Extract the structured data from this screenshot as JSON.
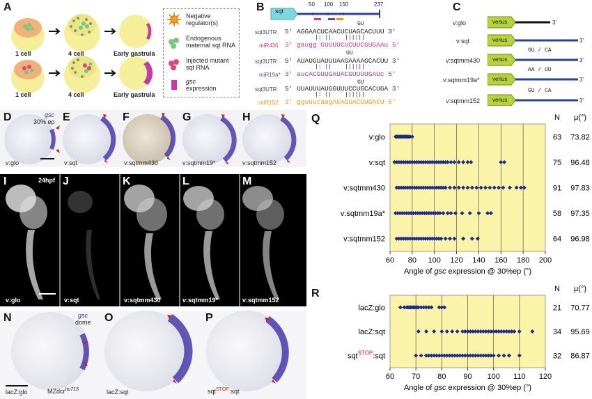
{
  "panels": {
    "A": "A",
    "B": "B",
    "C": "C",
    "D": "D",
    "E": "E",
    "F": "F",
    "G": "G",
    "H": "H",
    "I": "I",
    "J": "J",
    "K": "K",
    "L": "L",
    "M": "M",
    "N": "N",
    "O": "O",
    "P": "P",
    "Q": "Q",
    "R": "R"
  },
  "panelA": {
    "stage1": "1 cell",
    "stage2": "4 cell",
    "stage3": "Early gastrula",
    "legend": {
      "neg_reg": "Negative regulator(s)",
      "endog": "Endogenous maternal sqt RNA",
      "inj": "Injected mutant sqt RNA",
      "gsc_word": "gsc",
      "gsc_rest": "expression"
    }
  },
  "panelB": {
    "gene_box": "sqt",
    "ticks": [
      "50",
      "100",
      "150",
      "237"
    ],
    "rows": [
      {
        "label": "sqt3UTR",
        "seq": "5' AGGAACUCAACUCUAGCACUUU 3'",
        "bulge": "GU",
        "pairs": "|: ||    ||||||",
        "mir_label": "miR430",
        "mir_seq": "3' gaugg GUUUUCUCUUCGUGAAu 5'",
        "color": "#d63384"
      },
      {
        "label": "sqt3UTR",
        "seq": "5' AUAUGUAUUUAAGAAAAGCACUU 3'",
        "bulge": "UU",
        "pairs": "|: ||    ||||||",
        "mir_label": "miR19a*",
        "mir_seq": "3' aucACGUUGAUACGUUUUGAUc 5'",
        "color": "#7b3fa8"
      },
      {
        "label": "sqt3UTR",
        "seq": "5' UUAUUUAUGGUUUCCUGCACUGA 3'",
        "bulge": "GU",
        "pairs": "|: ||    ||||||",
        "mir_label": "miR152",
        "mir_seq": "3' gguuucaagACAGUACGUGACU 5'",
        "color": "#e69a1a"
      }
    ]
  },
  "panelC": {
    "rows": [
      {
        "name": "v:glo",
        "venus": "venus",
        "mut": "",
        "three": "3'"
      },
      {
        "name": "v:sqt",
        "venus": "venus",
        "mut": "",
        "three": "3'"
      },
      {
        "name": "v:sqtmm430",
        "venus": "venus",
        "mut": "GU / CA",
        "three": "3'"
      },
      {
        "name": "v:sqtmm19a*",
        "venus": "venus",
        "mut": "AA / UU",
        "three": "3'"
      },
      {
        "name": "v:sqtmm152",
        "venus": "venus",
        "mut": "GU / CA",
        "three": "3'"
      }
    ]
  },
  "photos_top": {
    "D_gsc": "gsc",
    "D_ep": "30% ep",
    "D": "v:glo",
    "E": "v:sqt",
    "F": "v:sqtmm430",
    "G": "v:sqtmm19*",
    "H": "v:sqtmm152"
  },
  "photos_mid": {
    "I_time": "24hpf",
    "I": "v:glo",
    "J": "v:sqt",
    "K": "v:sqtmm430",
    "L": "v:sqtmm19*",
    "M": "v:sqtmm152"
  },
  "photos_bot": {
    "N_gsc": "gsc",
    "N_dome": "dome",
    "N": "lacZ:glo",
    "N_geno": "MZdcr",
    "N_geno_sup": "hu715",
    "O": "lacZ:sqt",
    "P_pre": "sqt",
    "P_sup": "STOP",
    "P_post": ":sqt"
  },
  "colors": {
    "chart_bg": "#fbf3a8",
    "dot": "#1c2a8a",
    "purple": "#3b2a8f"
  },
  "chart_data": [
    {
      "type": "scatter",
      "title": "",
      "xlabel_pre": "Angle of ",
      "xlabel_em": "gsc",
      "xlabel_post": " expression @ 30%ep (°)",
      "xlim": [
        60,
        200
      ],
      "xticks": [
        60,
        80,
        100,
        120,
        140,
        160,
        180,
        200
      ],
      "grid": true,
      "col_n": "N",
      "col_mu": "μ(°)",
      "series": [
        {
          "label": "v:glo",
          "n": "63",
          "mu": "73.82",
          "x": [
            65,
            66,
            67,
            68,
            69,
            70,
            71,
            72,
            73,
            74,
            75,
            76,
            77,
            78,
            80,
            66,
            70,
            74
          ]
        },
        {
          "label": "v:sqt",
          "n": "75",
          "mu": "96.48",
          "x": [
            64,
            66,
            68,
            70,
            72,
            74,
            76,
            78,
            80,
            82,
            84,
            86,
            88,
            90,
            92,
            94,
            96,
            98,
            100,
            102,
            104,
            106,
            108,
            110,
            112,
            115,
            118,
            122,
            126,
            130,
            133,
            160,
            163
          ]
        },
        {
          "label": "v:sqtmm430",
          "n": "91",
          "mu": "97.83",
          "x": [
            66,
            68,
            70,
            72,
            74,
            76,
            78,
            80,
            82,
            84,
            86,
            88,
            90,
            92,
            94,
            96,
            98,
            100,
            102,
            104,
            106,
            108,
            110,
            114,
            118,
            122,
            126,
            130,
            134,
            138,
            142,
            146,
            150,
            154,
            158,
            162,
            168,
            174,
            178,
            181
          ]
        },
        {
          "label": "v:sqtmm19a*",
          "n": "58",
          "mu": "97.35",
          "x": [
            65,
            67,
            69,
            71,
            73,
            75,
            77,
            79,
            81,
            83,
            85,
            87,
            89,
            91,
            93,
            95,
            97,
            99,
            101,
            103,
            105,
            108,
            112,
            115,
            119,
            125,
            132,
            140,
            148,
            151
          ]
        },
        {
          "label": "v:sqtmm152",
          "n": "64",
          "mu": "96.98",
          "x": [
            66,
            68,
            70,
            72,
            74,
            76,
            78,
            80,
            82,
            84,
            86,
            88,
            90,
            92,
            94,
            96,
            98,
            100,
            102,
            104,
            106,
            110,
            114,
            118,
            126,
            134,
            139
          ]
        }
      ]
    },
    {
      "type": "scatter",
      "title": "",
      "xlabel_pre": "Angle of ",
      "xlabel_em": "gsc",
      "xlabel_post": " expression @ 30%ep (°)",
      "xlim": [
        60,
        120
      ],
      "xticks": [
        60,
        70,
        80,
        90,
        100,
        110,
        120
      ],
      "grid": true,
      "col_n": "N",
      "col_mu": "μ(°)",
      "series": [
        {
          "label": "lacZ:glo",
          "label_pre": "lacZ:glo",
          "label_sup": "",
          "label_post": "",
          "n": "21",
          "mu": "70.77",
          "x": [
            64,
            65.5,
            66.5,
            67,
            67.5,
            68,
            68.5,
            69,
            69.5,
            70,
            70.5,
            71,
            72,
            73,
            74,
            75,
            76,
            79,
            80,
            81
          ]
        },
        {
          "label": "lacZ:sqt",
          "label_pre": "lacZ:sqt",
          "label_sup": "",
          "label_post": "",
          "n": "34",
          "mu": "95.69",
          "x": [
            71,
            74,
            77,
            80,
            82,
            84,
            86,
            88,
            89,
            90,
            91,
            92,
            93,
            94,
            95,
            96,
            97,
            98,
            99,
            100,
            101,
            102,
            103,
            104,
            105,
            106,
            107,
            108,
            110,
            115
          ]
        },
        {
          "label": "sqtSTOP:sqt",
          "label_pre": "sqt",
          "label_sup": "STOP",
          "label_post": ":sqt",
          "n": "32",
          "mu": "86.87",
          "x": [
            70,
            72,
            74,
            75,
            76,
            77,
            78,
            79,
            80,
            81,
            82,
            83,
            84,
            85,
            86,
            87,
            88,
            89,
            90,
            91,
            92,
            93,
            94,
            95,
            96,
            97,
            98,
            99,
            100,
            102,
            104,
            106,
            110
          ]
        }
      ]
    }
  ]
}
